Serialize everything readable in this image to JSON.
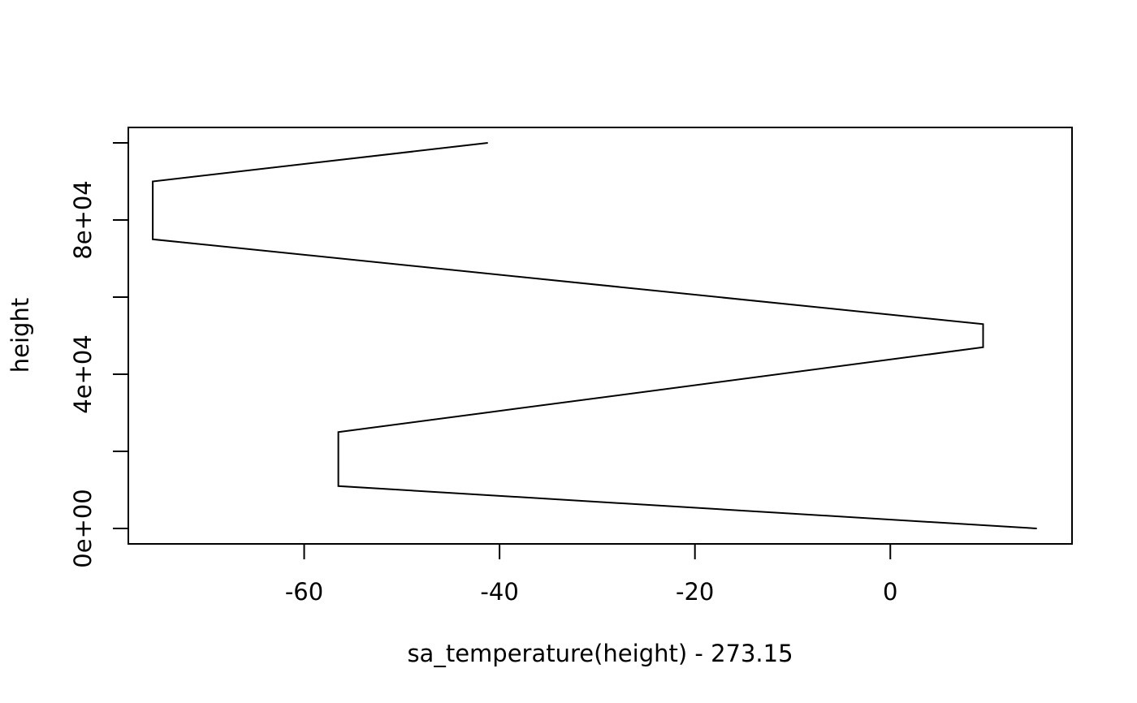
{
  "chart_data": {
    "type": "line",
    "title": "",
    "xlabel": "sa_temperature(height) - 273.15",
    "ylabel": "height",
    "xlim": [
      -78,
      18.6
    ],
    "ylim": [
      -4000,
      104000
    ],
    "x_ticks": [
      -60,
      -40,
      -20,
      0
    ],
    "x_tick_labels": [
      "-60",
      "-40",
      "-20",
      "0"
    ],
    "y_ticks": [
      0,
      20000,
      40000,
      60000,
      80000,
      100000
    ],
    "y_tick_labels": [
      "0e+00",
      "",
      "4e+04",
      "",
      "8e+04",
      ""
    ],
    "series": [
      {
        "x": [
          15,
          -56.5,
          -56.5,
          9.5,
          9.5,
          -75.5,
          -75.5,
          -41.2
        ],
        "y": [
          0,
          11000,
          25000,
          47000,
          53000,
          75000,
          90000,
          100000
        ]
      }
    ],
    "grid": false,
    "color": "#000000"
  }
}
